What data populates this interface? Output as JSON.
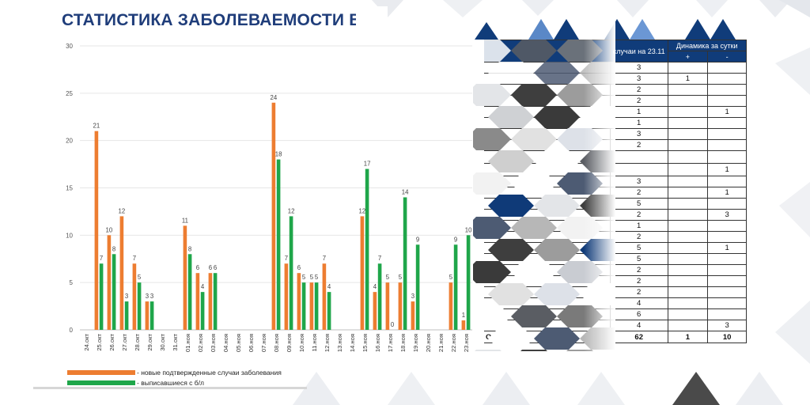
{
  "title": "СТАТИСТИКА ЗАБОЛЕВАЕМОСТИ В",
  "colors": {
    "orange": "#ed7d31",
    "green": "#1fa64a",
    "navy": "#103c7a"
  },
  "chart_data": {
    "type": "bar",
    "categories": [
      "24.окт",
      "25.окт",
      "26.окт",
      "27.окт",
      "28.окт",
      "29.окт",
      "30.окт",
      "31.окт",
      "01.ноя",
      "02.ноя",
      "03.ноя",
      "04.ноя",
      "05.ноя",
      "06.ноя",
      "07.ноя",
      "08.ноя",
      "09.ноя",
      "10.ноя",
      "11.ноя",
      "12.ноя",
      "13.ноя",
      "14.ноя",
      "15.ноя",
      "16.ноя",
      "17.ноя",
      "18.ноя",
      "19.ноя",
      "20.ноя",
      "21.ноя",
      "22.ноя",
      "23.ноя"
    ],
    "series": [
      {
        "name": "- новые подтвержденные случаи заболевания",
        "color": "#ed7d31",
        "values": [
          null,
          21,
          10,
          12,
          7,
          3,
          null,
          null,
          11,
          6,
          6,
          null,
          null,
          null,
          null,
          24,
          7,
          6,
          5,
          7,
          null,
          null,
          12,
          4,
          5,
          5,
          3,
          null,
          null,
          5,
          1
        ]
      },
      {
        "name": "- выписавшиеся с б/л",
        "color": "#1fa64a",
        "values": [
          null,
          7,
          8,
          3,
          5,
          3,
          null,
          null,
          8,
          4,
          6,
          null,
          null,
          null,
          null,
          18,
          12,
          5,
          5,
          4,
          null,
          null,
          17,
          7,
          0,
          14,
          9,
          null,
          null,
          9,
          10
        ]
      }
    ],
    "yticks": [
      0,
      5,
      10,
      15,
      20,
      25,
      30
    ],
    "ylim": [
      0,
      30
    ],
    "grid": true,
    "legend": "bottom-left"
  },
  "table": {
    "header": {
      "cases": "случаи на 23.11",
      "dynamics": "Динамика за сутки",
      "plus": "+",
      "minus": "-"
    },
    "rows": [
      {
        "cases": "3",
        "plus": "",
        "minus": ""
      },
      {
        "cases": "3",
        "plus": "1",
        "minus": ""
      },
      {
        "cases": "2",
        "plus": "",
        "minus": ""
      },
      {
        "cases": "2",
        "plus": "",
        "minus": ""
      },
      {
        "cases": "1",
        "plus": "",
        "minus": "1"
      },
      {
        "cases": "1",
        "plus": "",
        "minus": ""
      },
      {
        "cases": "3",
        "plus": "",
        "minus": ""
      },
      {
        "cases": "2",
        "plus": "",
        "minus": ""
      },
      {
        "cases": "",
        "plus": "",
        "minus": ""
      },
      {
        "cases": "",
        "plus": "",
        "minus": "1"
      },
      {
        "cases": "3",
        "plus": "",
        "minus": ""
      },
      {
        "cases": "2",
        "plus": "",
        "minus": "1"
      },
      {
        "cases": "5",
        "plus": "",
        "minus": ""
      },
      {
        "cases": "2",
        "plus": "",
        "minus": "3"
      },
      {
        "cases": "1",
        "plus": "",
        "minus": ""
      },
      {
        "cases": "2",
        "plus": "",
        "minus": ""
      },
      {
        "cases": "5",
        "plus": "",
        "minus": "1"
      },
      {
        "cases": "5",
        "plus": "",
        "minus": ""
      },
      {
        "cases": "2",
        "plus": "",
        "minus": ""
      },
      {
        "cases": "2",
        "plus": "",
        "minus": ""
      },
      {
        "cases": "2",
        "plus": "",
        "minus": ""
      },
      {
        "cases": "4",
        "plus": "",
        "minus": ""
      },
      {
        "cases": "6",
        "plus": "",
        "minus": ""
      },
      {
        "cases": "4",
        "plus": "",
        "minus": "3"
      }
    ],
    "total": {
      "label": "Общий итог",
      "cases": "62",
      "plus": "1",
      "minus": "10"
    }
  }
}
